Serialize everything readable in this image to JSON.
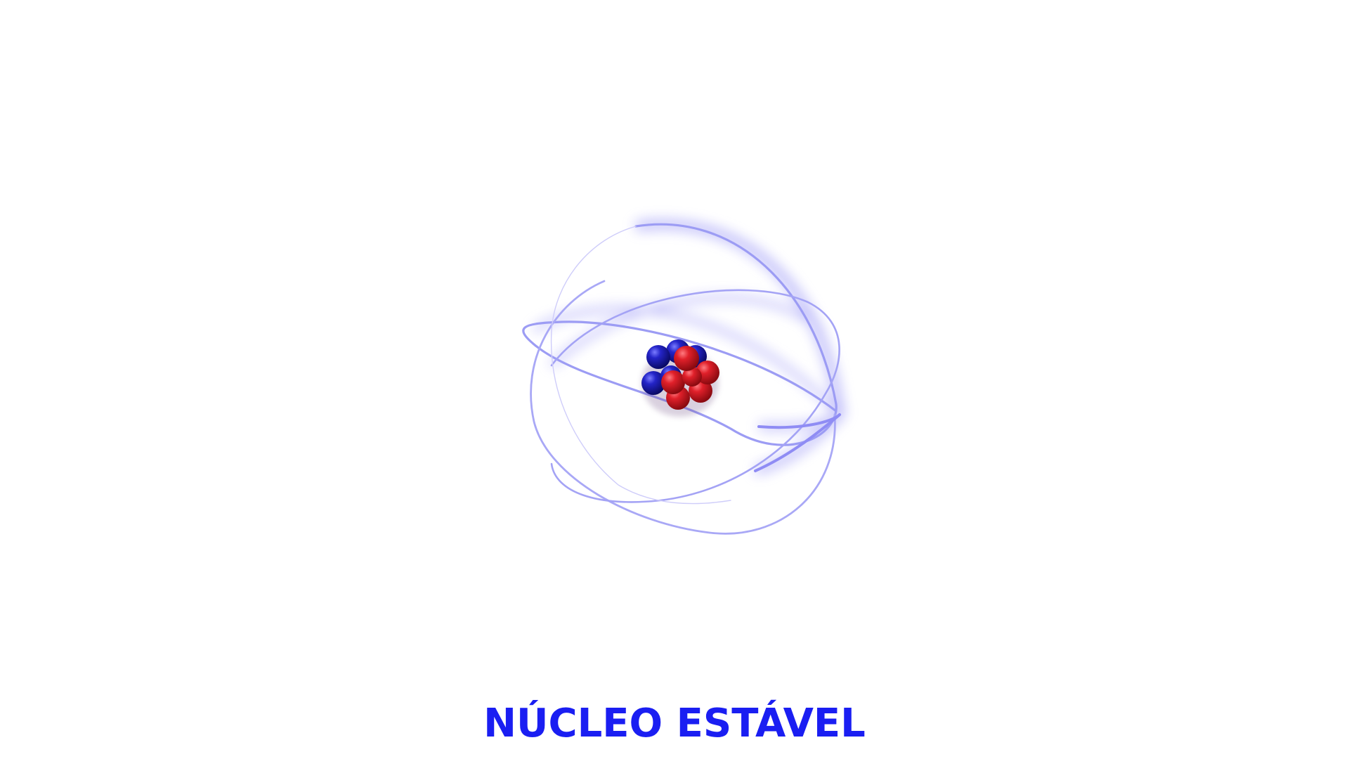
{
  "caption": {
    "text": "NÚCLEO ESTÁVEL",
    "color": "#1a1ef2"
  },
  "atom": {
    "orbit_color": "#9c9cf4",
    "orbit_glow_color": "#8a86f5",
    "proton_color": "#d6161f",
    "neutron_color": "#1c1ab8",
    "protons_shown": 6,
    "neutrons_shown": 5
  }
}
